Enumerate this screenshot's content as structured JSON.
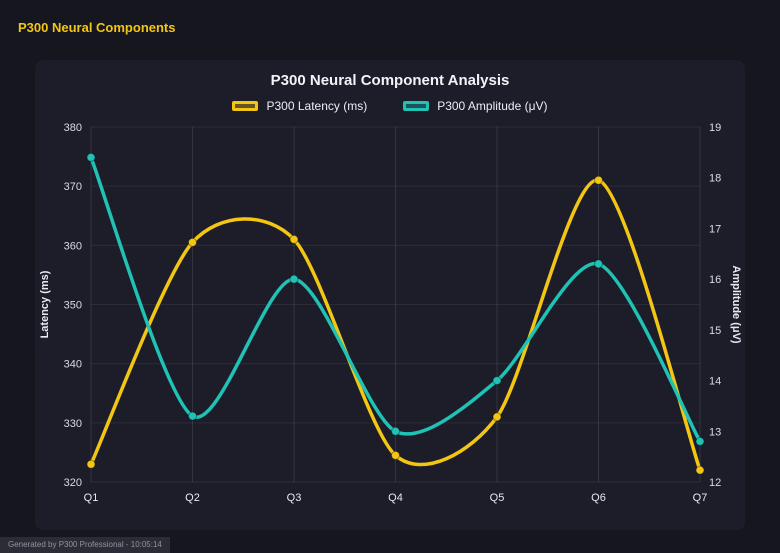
{
  "page": {
    "header_title": "P300 Neural Components",
    "footer": "Generated by P300 Professional - 10:05:14"
  },
  "chart_data": {
    "type": "line",
    "title": "P300 Neural Component Analysis",
    "categories": [
      "Q1",
      "Q2",
      "Q3",
      "Q4",
      "Q5",
      "Q6",
      "Q7"
    ],
    "series": [
      {
        "name": "P300 Latency (ms)",
        "axis": "left",
        "color": "#f3c614",
        "values": [
          323,
          360.5,
          361,
          324.5,
          331,
          371,
          322
        ]
      },
      {
        "name": "P300 Amplitude (μV)",
        "axis": "right",
        "color": "#1fc2b4",
        "values": [
          18.4,
          13.3,
          16.0,
          13.0,
          14.0,
          16.3,
          12.8
        ]
      }
    ],
    "left_axis": {
      "label": "Latency (ms)",
      "min": 320,
      "max": 380,
      "step": 10,
      "ticks": [
        320,
        330,
        340,
        350,
        360,
        370,
        380
      ]
    },
    "right_axis": {
      "label": "Amplitude (μV)",
      "min": 12,
      "max": 19,
      "step": 1,
      "ticks": [
        12,
        13,
        14,
        15,
        16,
        17,
        18,
        19
      ]
    },
    "grid": true,
    "smooth": true,
    "legend_position": "top",
    "colors": {
      "background": "#1d1d2a",
      "page_background": "#16161f",
      "accent": "#f3c614",
      "teal": "#1fc2b4"
    }
  }
}
